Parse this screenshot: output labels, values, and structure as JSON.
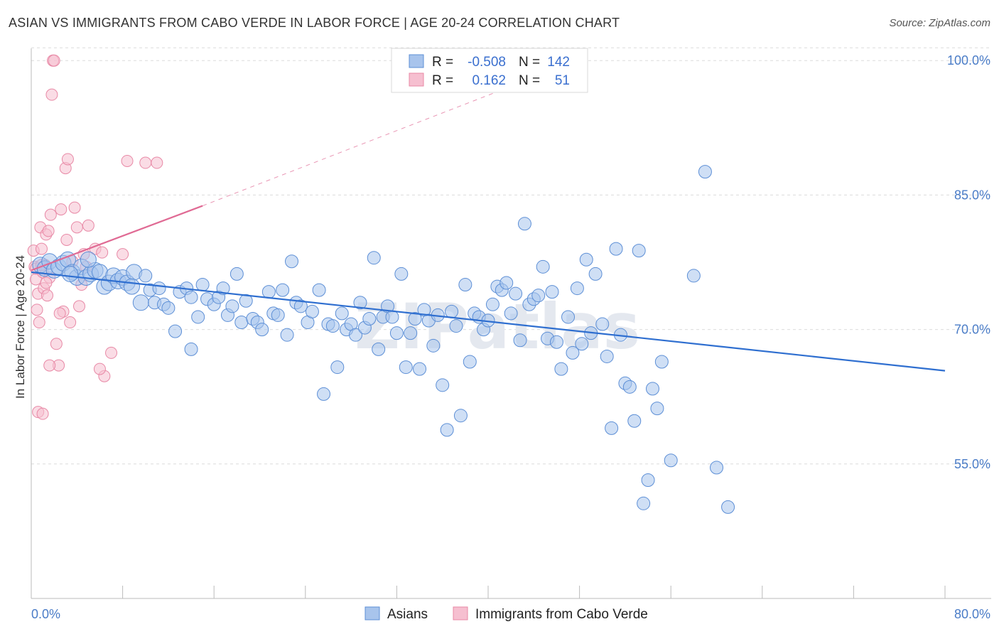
{
  "title": "ASIAN VS IMMIGRANTS FROM CABO VERDE IN LABOR FORCE | AGE 20-24 CORRELATION CHART",
  "source": "Source: ZipAtlas.com",
  "watermark": "ZIPatlas",
  "colors": {
    "asian_fill": "#a8c4ec",
    "asian_stroke": "#5d8fd6",
    "asian_line": "#2f6fd0",
    "cabo_fill": "#f6bfd0",
    "cabo_stroke": "#e889a6",
    "cabo_line": "#e06a94",
    "grid": "#dcdcdc",
    "tick_text": "#4a7cc7"
  },
  "legend": {
    "rows": [
      {
        "r_label": "R =",
        "r_value": "-0.508",
        "n_label": "N =",
        "n_value": "142"
      },
      {
        "r_label": "R =",
        "r_value": "0.162",
        "n_label": "N =",
        "n_value": "51"
      }
    ]
  },
  "bottom_legend": [
    "Asians",
    "Immigrants from Cabo Verde"
  ],
  "chart_data": {
    "type": "scatter",
    "title": "ASIAN VS IMMIGRANTS FROM CABO VERDE IN LABOR FORCE | AGE 20-24 CORRELATION CHART",
    "xlabel": "",
    "ylabel": "In Labor Force | Age 20-24",
    "xlim": [
      0,
      80
    ],
    "ylim": [
      40,
      102
    ],
    "x_tick_labels": [
      "0.0%",
      "80.0%"
    ],
    "y_ticks": [
      55,
      70,
      85,
      100
    ],
    "y_tick_labels": [
      "55.0%",
      "70.0%",
      "85.0%",
      "100.0%"
    ],
    "grid": true,
    "legend_position": "top-center",
    "series": [
      {
        "name": "Asians",
        "trend": {
          "x": [
            0,
            80
          ],
          "y": [
            76.4,
            65.4
          ]
        },
        "points": [
          [
            0.8,
            77.2
          ],
          [
            1.2,
            76.8
          ],
          [
            1.6,
            77.6
          ],
          [
            2.0,
            76.6
          ],
          [
            2.4,
            77.0
          ],
          [
            2.8,
            77.4
          ],
          [
            3.2,
            77.8
          ],
          [
            3.6,
            76.4
          ],
          [
            4.0,
            75.8
          ],
          [
            4.4,
            77.0
          ],
          [
            4.8,
            75.8
          ],
          [
            5.2,
            76.2
          ],
          [
            5.6,
            76.6
          ],
          [
            6.0,
            76.4
          ],
          [
            6.4,
            74.8
          ],
          [
            6.8,
            75.2
          ],
          [
            7.2,
            76.0
          ],
          [
            7.6,
            75.4
          ],
          [
            8.0,
            75.8
          ],
          [
            8.4,
            75.2
          ],
          [
            9.0,
            76.4
          ],
          [
            9.6,
            73.0
          ],
          [
            10.0,
            76.0
          ],
          [
            10.4,
            74.4
          ],
          [
            10.8,
            73.0
          ],
          [
            11.2,
            74.6
          ],
          [
            11.6,
            72.8
          ],
          [
            12.0,
            72.4
          ],
          [
            12.6,
            69.8
          ],
          [
            13.0,
            74.2
          ],
          [
            13.6,
            74.6
          ],
          [
            14.0,
            73.6
          ],
          [
            14.6,
            71.4
          ],
          [
            15.0,
            75.0
          ],
          [
            15.4,
            73.4
          ],
          [
            16.0,
            72.8
          ],
          [
            16.4,
            73.6
          ],
          [
            16.8,
            74.6
          ],
          [
            17.2,
            71.6
          ],
          [
            17.6,
            72.6
          ],
          [
            18.0,
            76.2
          ],
          [
            18.4,
            70.8
          ],
          [
            18.8,
            73.2
          ],
          [
            19.4,
            71.2
          ],
          [
            19.8,
            70.8
          ],
          [
            20.2,
            70.0
          ],
          [
            20.8,
            74.2
          ],
          [
            21.2,
            71.8
          ],
          [
            21.6,
            71.6
          ],
          [
            22.0,
            74.4
          ],
          [
            22.4,
            69.4
          ],
          [
            22.8,
            77.6
          ],
          [
            23.2,
            73.0
          ],
          [
            23.6,
            72.6
          ],
          [
            24.2,
            70.8
          ],
          [
            24.6,
            72.0
          ],
          [
            25.2,
            74.4
          ],
          [
            25.6,
            62.8
          ],
          [
            26.0,
            70.6
          ],
          [
            26.4,
            70.4
          ],
          [
            26.8,
            65.8
          ],
          [
            27.2,
            71.8
          ],
          [
            27.6,
            70.0
          ],
          [
            28.0,
            70.6
          ],
          [
            28.4,
            69.4
          ],
          [
            28.8,
            73.0
          ],
          [
            29.2,
            70.2
          ],
          [
            29.6,
            71.2
          ],
          [
            30.0,
            78.0
          ],
          [
            30.4,
            67.8
          ],
          [
            30.8,
            71.4
          ],
          [
            31.2,
            72.6
          ],
          [
            31.6,
            71.4
          ],
          [
            32.0,
            69.6
          ],
          [
            32.4,
            76.2
          ],
          [
            32.8,
            65.8
          ],
          [
            33.2,
            69.6
          ],
          [
            33.6,
            71.2
          ],
          [
            34.0,
            65.6
          ],
          [
            34.4,
            72.2
          ],
          [
            34.8,
            71.0
          ],
          [
            35.2,
            68.2
          ],
          [
            35.6,
            71.6
          ],
          [
            36.0,
            63.8
          ],
          [
            36.4,
            58.8
          ],
          [
            36.8,
            72.0
          ],
          [
            37.2,
            70.4
          ],
          [
            37.6,
            60.4
          ],
          [
            38.0,
            75.0
          ],
          [
            38.4,
            66.4
          ],
          [
            38.8,
            71.8
          ],
          [
            39.2,
            71.4
          ],
          [
            39.6,
            70.0
          ],
          [
            40.0,
            71.0
          ],
          [
            40.4,
            72.8
          ],
          [
            40.8,
            74.8
          ],
          [
            41.2,
            74.4
          ],
          [
            41.6,
            75.2
          ],
          [
            42.0,
            71.8
          ],
          [
            42.4,
            74.0
          ],
          [
            42.8,
            68.8
          ],
          [
            43.2,
            81.8
          ],
          [
            43.6,
            72.8
          ],
          [
            44.0,
            73.4
          ],
          [
            44.4,
            73.8
          ],
          [
            44.8,
            77.0
          ],
          [
            45.2,
            69.0
          ],
          [
            45.6,
            74.2
          ],
          [
            46.0,
            68.6
          ],
          [
            46.4,
            65.6
          ],
          [
            47.0,
            71.4
          ],
          [
            47.4,
            67.4
          ],
          [
            47.8,
            74.6
          ],
          [
            48.2,
            68.4
          ],
          [
            48.6,
            77.8
          ],
          [
            49.0,
            69.6
          ],
          [
            49.4,
            76.2
          ],
          [
            50.0,
            70.6
          ],
          [
            50.4,
            67.0
          ],
          [
            50.8,
            59.0
          ],
          [
            51.2,
            79.0
          ],
          [
            51.6,
            69.4
          ],
          [
            52.0,
            64.0
          ],
          [
            52.4,
            63.6
          ],
          [
            52.8,
            59.8
          ],
          [
            53.2,
            78.8
          ],
          [
            53.6,
            50.6
          ],
          [
            54.0,
            53.2
          ],
          [
            54.4,
            63.4
          ],
          [
            54.8,
            61.2
          ],
          [
            55.2,
            66.4
          ],
          [
            56.0,
            55.4
          ],
          [
            58.0,
            76.0
          ],
          [
            59.0,
            87.6
          ],
          [
            60.0,
            54.6
          ],
          [
            61.0,
            50.2
          ],
          [
            5.0,
            77.8
          ],
          [
            14.0,
            67.8
          ],
          [
            3.4,
            76.2
          ],
          [
            8.8,
            74.8
          ]
        ]
      },
      {
        "name": "Immigrants from Cabo Verde",
        "trend": {
          "x": [
            0,
            15
          ],
          "y": [
            76.6,
            83.8
          ]
        },
        "trend_extended": {
          "x": [
            15,
            45
          ],
          "y": [
            83.8,
            98.6
          ]
        },
        "points": [
          [
            0.2,
            78.8
          ],
          [
            0.3,
            77.0
          ],
          [
            0.4,
            75.6
          ],
          [
            0.5,
            72.2
          ],
          [
            0.6,
            74.0
          ],
          [
            0.7,
            70.8
          ],
          [
            0.8,
            81.4
          ],
          [
            0.9,
            79.0
          ],
          [
            1.0,
            76.4
          ],
          [
            1.1,
            74.6
          ],
          [
            1.2,
            77.2
          ],
          [
            1.3,
            80.6
          ],
          [
            1.4,
            73.8
          ],
          [
            1.5,
            81.0
          ],
          [
            1.6,
            75.8
          ],
          [
            1.7,
            82.8
          ],
          [
            1.8,
            96.2
          ],
          [
            1.9,
            100.0
          ],
          [
            2.0,
            100.0
          ],
          [
            2.2,
            68.4
          ],
          [
            2.4,
            66.0
          ],
          [
            2.6,
            83.4
          ],
          [
            2.8,
            72.0
          ],
          [
            3.0,
            88.0
          ],
          [
            3.2,
            89.0
          ],
          [
            3.4,
            70.8
          ],
          [
            3.6,
            77.6
          ],
          [
            3.8,
            83.6
          ],
          [
            4.0,
            81.4
          ],
          [
            4.2,
            72.6
          ],
          [
            4.4,
            75.0
          ],
          [
            4.6,
            78.4
          ],
          [
            5.0,
            81.6
          ],
          [
            5.6,
            79.0
          ],
          [
            6.2,
            78.6
          ],
          [
            6.4,
            64.8
          ],
          [
            7.0,
            67.4
          ],
          [
            8.0,
            78.4
          ],
          [
            8.4,
            88.8
          ],
          [
            10.0,
            88.6
          ],
          [
            11.0,
            88.6
          ],
          [
            0.6,
            60.8
          ],
          [
            1.0,
            60.6
          ],
          [
            1.6,
            66.0
          ],
          [
            2.5,
            71.8
          ],
          [
            3.1,
            80.0
          ],
          [
            0.4,
            76.8
          ],
          [
            0.9,
            77.2
          ],
          [
            1.3,
            75.2
          ],
          [
            4.8,
            77.0
          ],
          [
            6.0,
            65.6
          ]
        ]
      }
    ]
  }
}
